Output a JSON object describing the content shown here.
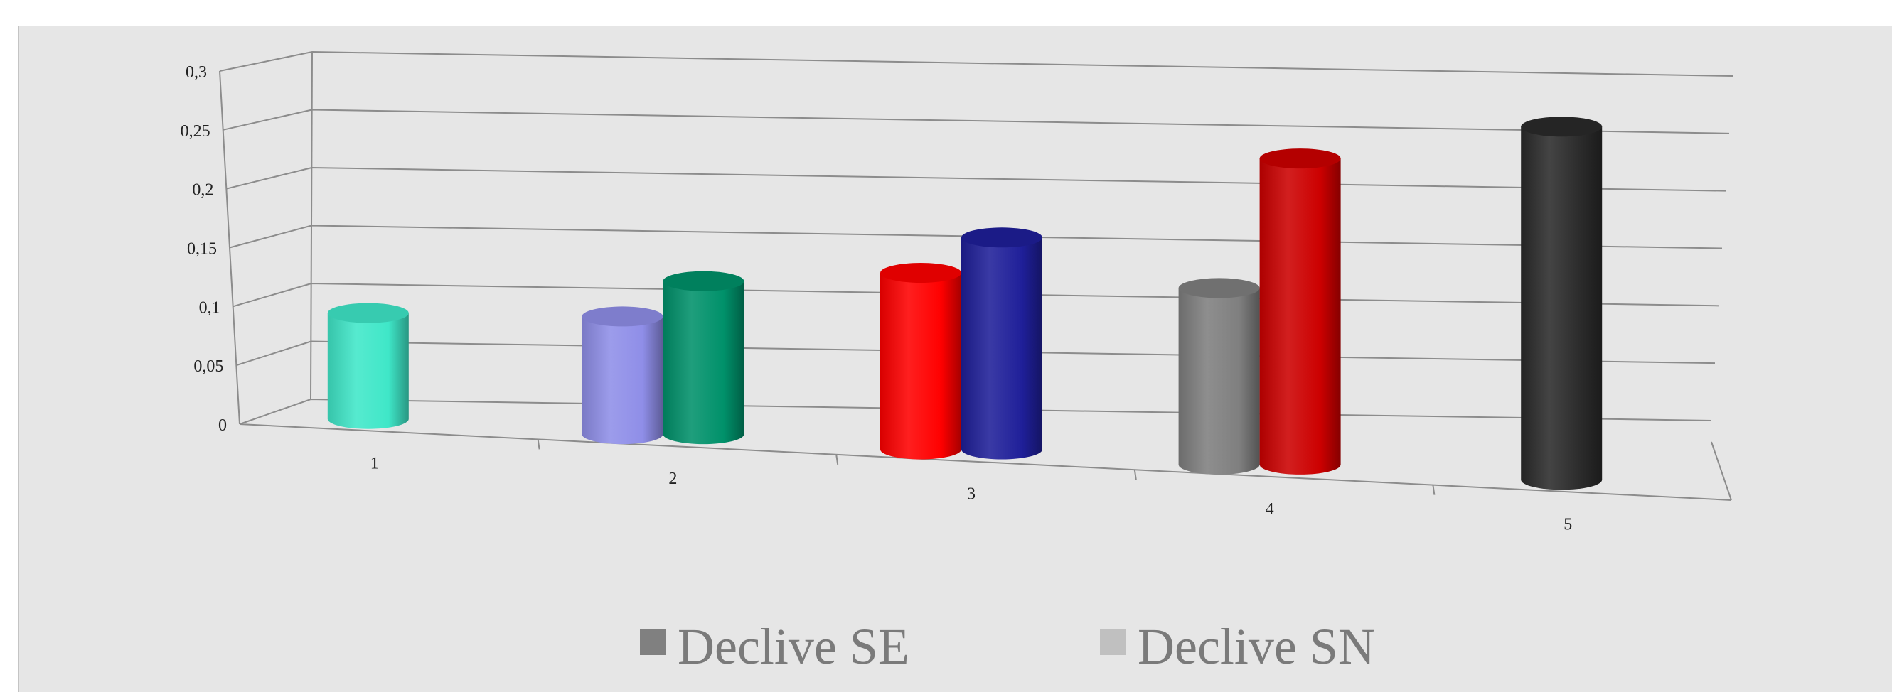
{
  "chart_data": {
    "type": "bar",
    "style": "3d-cylinder",
    "categories": [
      "1",
      "2",
      "3",
      "4",
      "5"
    ],
    "series": [
      {
        "name": "Declive SE",
        "values": [
          null,
          0.1,
          0.15,
          0.15,
          null
        ],
        "legend_color": "#808080"
      },
      {
        "name": "Declive SN",
        "values": [
          0.09,
          0.13,
          0.18,
          0.26,
          0.3
        ],
        "legend_color": "#c0c0c0"
      }
    ],
    "bar_colors": [
      [
        "#3fe7c8",
        "#8f8ee8",
        "#ff0000",
        "#7f7f7f",
        "#2a2a2a"
      ],
      [
        "#3fe7c8",
        "#00916a",
        "#1f1f99",
        "#cc0000",
        "#2a2a2a"
      ]
    ],
    "yticks": [
      "0",
      "0,05",
      "0,1",
      "0,15",
      "0,2",
      "0,25",
      "0,3"
    ],
    "ylim": [
      0,
      0.3
    ],
    "legend_position": "bottom",
    "grid": true
  }
}
